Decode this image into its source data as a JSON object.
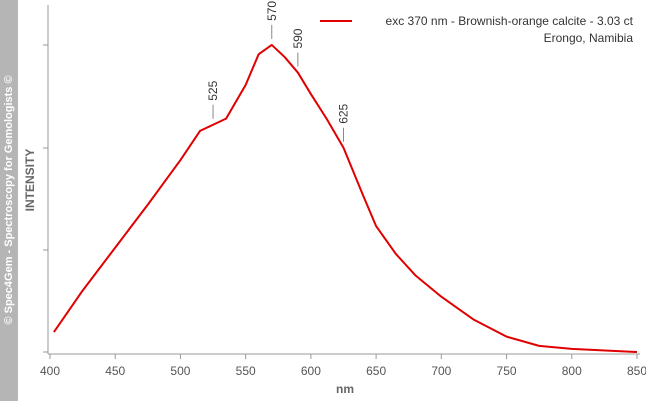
{
  "chart_data": {
    "type": "line",
    "watermark": "© Spec4Gem - Spectroscopy for Gemologists ©",
    "x_label": "nm",
    "y_label": "INTENSITY",
    "legend_note": "Erongo, Namibia",
    "x": [
      403,
      425,
      450,
      475,
      500,
      515,
      525,
      535,
      550,
      560,
      570,
      580,
      590,
      600,
      612,
      625,
      640,
      650,
      665,
      680,
      700,
      725,
      750,
      775,
      800,
      850
    ],
    "series": [
      {
        "name": "exc 370 nm - Brownish-orange calcite - 3.03 ct",
        "color": "#e00000",
        "values": [
          0.065,
          0.2,
          0.34,
          0.48,
          0.625,
          0.72,
          0.74,
          0.76,
          0.87,
          0.97,
          1.0,
          0.96,
          0.91,
          0.84,
          0.76,
          0.665,
          0.51,
          0.41,
          0.32,
          0.25,
          0.18,
          0.105,
          0.05,
          0.02,
          0.01,
          0.0
        ]
      }
    ],
    "peak_labels": [
      525,
      570,
      590,
      625
    ],
    "xlim": [
      400,
      850
    ],
    "xticks": [
      400,
      450,
      500,
      550,
      600,
      650,
      700,
      750,
      800,
      850
    ],
    "ylim": [
      0,
      1.13
    ],
    "legend": "top-right"
  }
}
